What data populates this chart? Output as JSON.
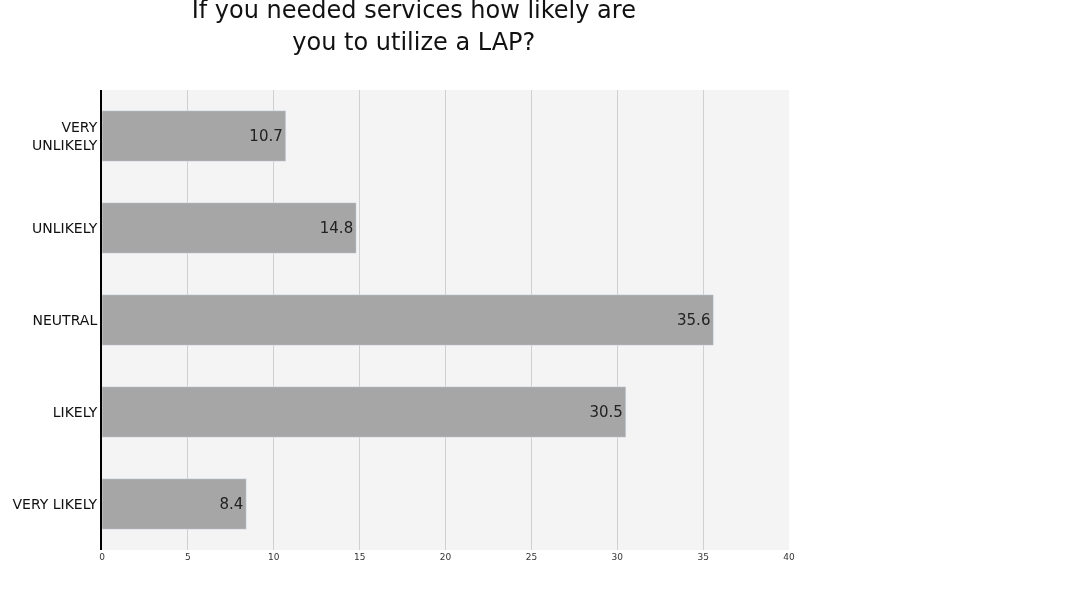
{
  "chart_data": {
    "type": "bar",
    "orientation": "horizontal",
    "title": "If you needed services how likely are you to utilize a LAP?",
    "categories": [
      "VERY UNLIKELY",
      "UNLIKELY",
      "NEUTRAL",
      "LIKELY",
      "VERY LIKELY"
    ],
    "values": [
      10.7,
      14.8,
      35.6,
      30.5,
      8.4
    ],
    "color": "#a6a6a6",
    "data_labels": true,
    "xlim": [
      0,
      40
    ],
    "xticks": [
      0,
      5,
      10,
      15,
      20,
      25,
      30,
      35,
      40
    ],
    "grid": "x"
  }
}
